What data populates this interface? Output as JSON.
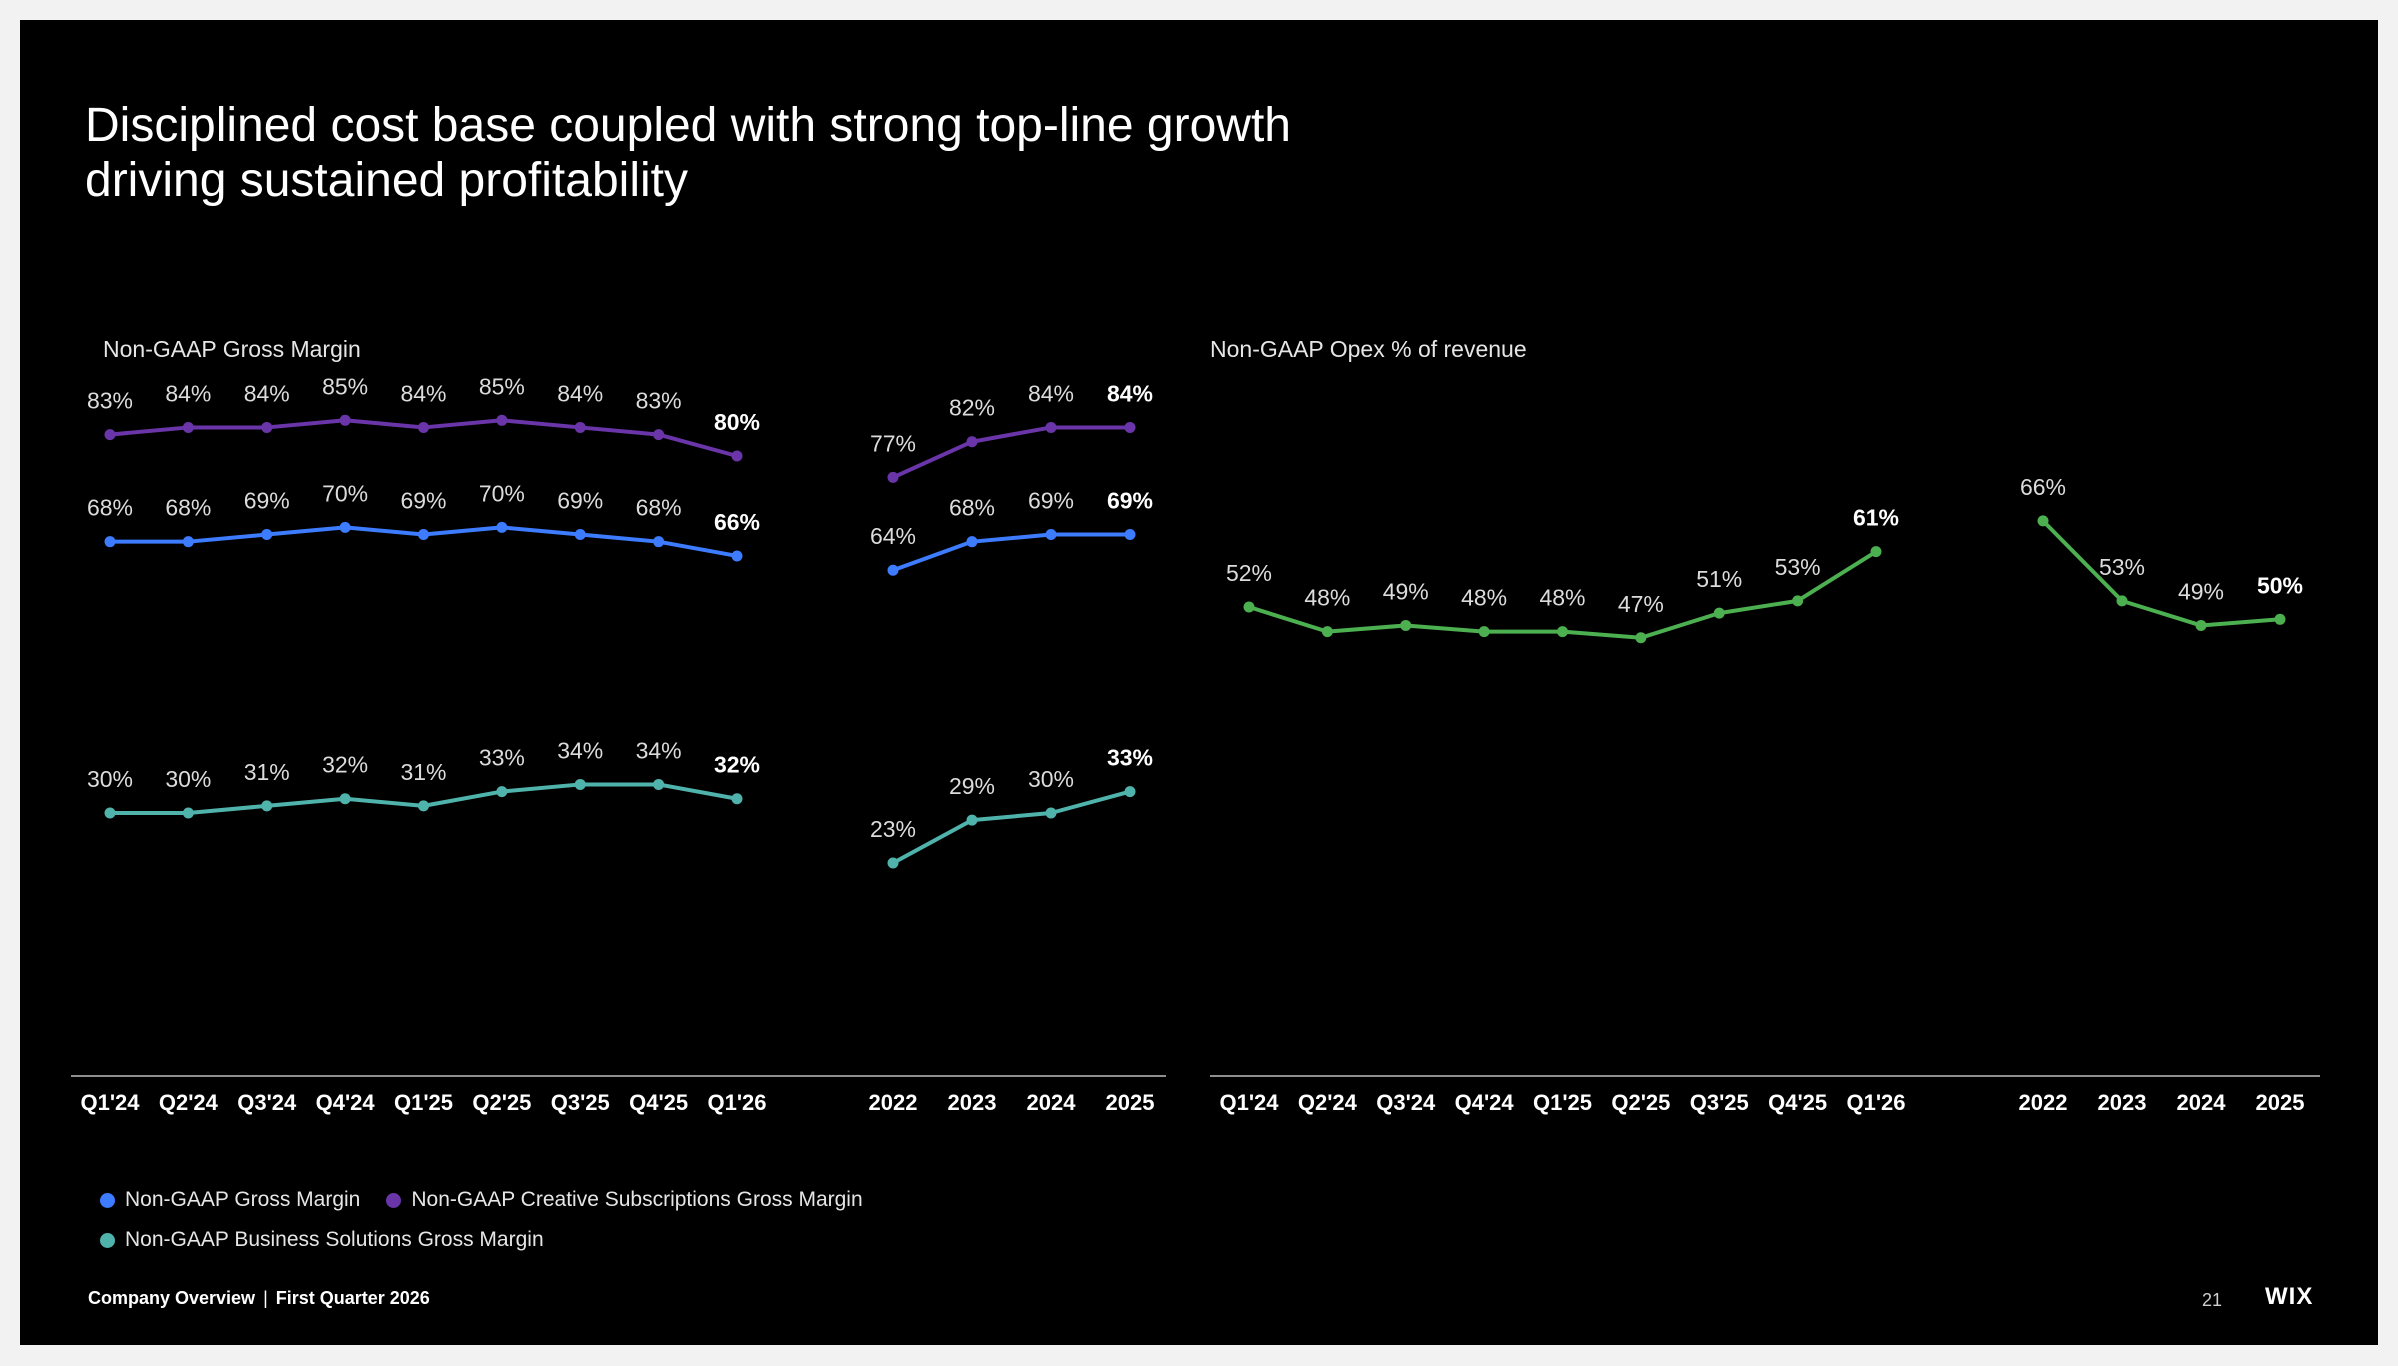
{
  "slide": {
    "title_line1": "Disciplined cost base coupled with strong top-line growth",
    "title_line2": "driving sustained profitability",
    "footer": {
      "company": "Company Overview",
      "separator": "|",
      "period": "First Quarter 2026"
    },
    "page_number": "21",
    "logo": "WIX"
  },
  "legend": {
    "items": [
      {
        "label": "Non-GAAP Gross Margin",
        "color": "#3d7bff"
      },
      {
        "label": "Non-GAAP Creative Subscriptions Gross Margin",
        "color": "#6a35a8"
      },
      {
        "label": "Non-GAAP Business Solutions Gross Margin",
        "color": "#4fb3ac"
      }
    ]
  },
  "chart_data": [
    {
      "type": "line",
      "title": "Non-GAAP Gross Margin",
      "panels": [
        {
          "categories": [
            "Q1'24",
            "Q2'24",
            "Q3'24",
            "Q4'24",
            "Q1'25",
            "Q2'25",
            "Q3'25",
            "Q4'25",
            "Q1'26"
          ],
          "series": [
            {
              "name": "Non-GAAP Creative Subscriptions Gross Margin",
              "color": "#6a35a8",
              "values": [
                83,
                84,
                84,
                85,
                84,
                85,
                84,
                83,
                80
              ]
            },
            {
              "name": "Non-GAAP Gross Margin",
              "color": "#3d7bff",
              "values": [
                68,
                68,
                69,
                70,
                69,
                70,
                69,
                68,
                66
              ]
            },
            {
              "name": "Non-GAAP Business Solutions Gross Margin",
              "color": "#4fb3ac",
              "values": [
                30,
                30,
                31,
                32,
                31,
                33,
                34,
                34,
                32
              ]
            }
          ]
        },
        {
          "categories": [
            "2022",
            "2023",
            "2024",
            "2025"
          ],
          "series": [
            {
              "name": "Non-GAAP Creative Subscriptions Gross Margin",
              "color": "#6a35a8",
              "values": [
                77,
                82,
                84,
                84
              ]
            },
            {
              "name": "Non-GAAP Gross Margin",
              "color": "#3d7bff",
              "values": [
                64,
                68,
                69,
                69
              ]
            },
            {
              "name": "Non-GAAP Business Solutions Gross Margin",
              "color": "#4fb3ac",
              "values": [
                23,
                29,
                30,
                33
              ]
            }
          ]
        }
      ],
      "unit": "%",
      "last_label_bold": true
    },
    {
      "type": "line",
      "title": "Non-GAAP Opex % of revenue",
      "panels": [
        {
          "categories": [
            "Q1'24",
            "Q2'24",
            "Q3'24",
            "Q4'24",
            "Q1'25",
            "Q2'25",
            "Q3'25",
            "Q4'25",
            "Q1'26"
          ],
          "series": [
            {
              "name": "Non-GAAP Opex % of revenue",
              "color": "#4caf50",
              "values": [
                52,
                48,
                49,
                48,
                48,
                47,
                51,
                53,
                61
              ]
            }
          ]
        },
        {
          "categories": [
            "2022",
            "2023",
            "2024",
            "2025"
          ],
          "series": [
            {
              "name": "Non-GAAP Opex % of revenue",
              "color": "#4caf50",
              "values": [
                66,
                53,
                49,
                50
              ]
            }
          ]
        }
      ],
      "unit": "%",
      "last_label_bold": true
    }
  ]
}
